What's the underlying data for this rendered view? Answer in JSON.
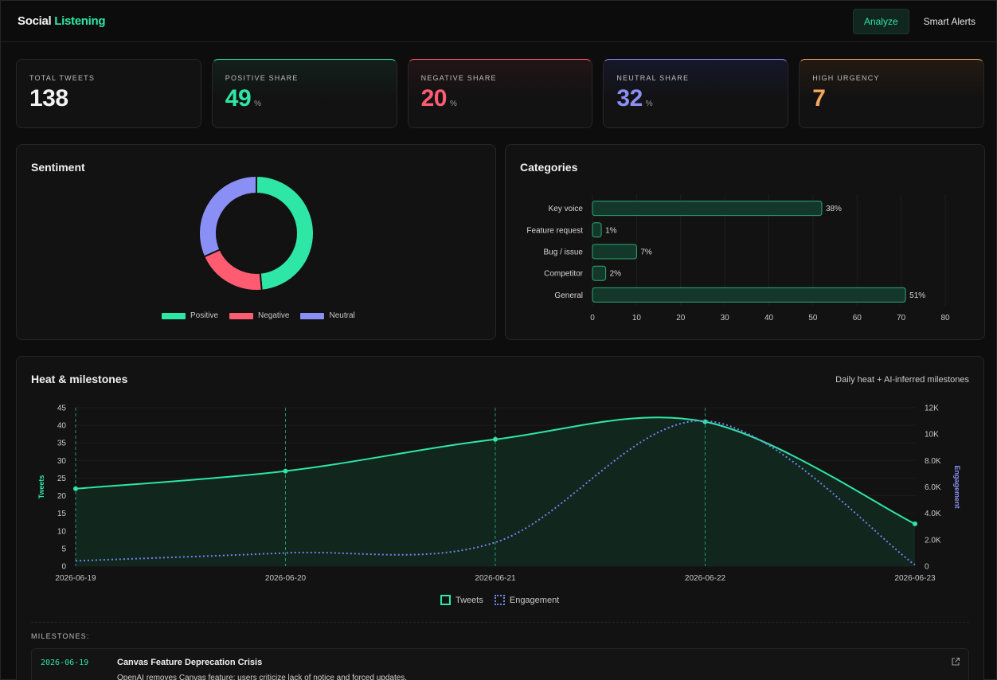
{
  "header": {
    "logo_part1": "Social",
    "logo_part2": "Listening",
    "nav": [
      {
        "label": "Analyze",
        "active": true
      },
      {
        "label": "Smart Alerts",
        "active": false
      }
    ]
  },
  "kpis": [
    {
      "label": "TOTAL TWEETS",
      "value": "138",
      "unit": "",
      "color": "#f2f2f2"
    },
    {
      "label": "POSITIVE SHARE",
      "value": "49",
      "unit": "%",
      "color": "#2ee6a6"
    },
    {
      "label": "NEGATIVE SHARE",
      "value": "20",
      "unit": "%",
      "color": "#ff5c72"
    },
    {
      "label": "NEUTRAL SHARE",
      "value": "32",
      "unit": "%",
      "color": "#8a8ff5"
    },
    {
      "label": "HIGH URGENCY",
      "value": "7",
      "unit": "",
      "color": "#f5a75a"
    }
  ],
  "sentiment": {
    "title": "Sentiment",
    "legend": [
      {
        "label": "Positive",
        "color": "#2ee6a6"
      },
      {
        "label": "Negative",
        "color": "#ff5c72"
      },
      {
        "label": "Neutral",
        "color": "#8a8ff5"
      }
    ]
  },
  "categories": {
    "title": "Categories"
  },
  "heat": {
    "title": "Heat & milestones",
    "subtitle": "Daily heat + AI-inferred milestones",
    "legend_tweets": "Tweets",
    "legend_engagement": "Engagement",
    "milestones_label": "MILESTONES:",
    "milestones": [
      {
        "date": "2026-06-19",
        "title": "Canvas Feature Deprecation Crisis",
        "desc": "OpenAI removes Canvas feature; users criticize lack of notice and forced updates.",
        "icon": "external-link-icon"
      }
    ]
  },
  "chart_data": [
    {
      "type": "pie",
      "title": "",
      "categories": [
        "Positive",
        "Negative",
        "Neutral"
      ],
      "values": [
        49,
        20,
        32
      ],
      "colors": [
        "#2ee6a6",
        "#ff5c72",
        "#8a8ff5"
      ],
      "donut": true,
      "legend": "bottom"
    },
    {
      "type": "bar",
      "orientation": "horizontal",
      "title": "",
      "categories": [
        "Key voice",
        "Feature request",
        "Bug / issue",
        "Competitor",
        "General"
      ],
      "values": [
        52,
        2,
        10,
        3,
        71
      ],
      "data_labels": [
        "38%",
        "1%",
        "7%",
        "2%",
        "51%"
      ],
      "xlim": [
        0,
        80
      ],
      "xticks": [
        0,
        10,
        20,
        30,
        40,
        50,
        60,
        70,
        80
      ],
      "grid": true
    },
    {
      "type": "line",
      "title": "",
      "x": [
        "2026-06-19",
        "2026-06-20",
        "2026-06-21",
        "2026-06-22",
        "2026-06-23"
      ],
      "ylabel": "Tweets",
      "y2label": "Engagement",
      "ylim": [
        0,
        45
      ],
      "yticks": [
        0,
        5,
        10,
        15,
        20,
        25,
        30,
        35,
        40,
        45
      ],
      "y2lim": [
        0,
        12000
      ],
      "y2ticks": [
        "0",
        "2.0K",
        "4.0K",
        "6.0K",
        "8.0K",
        "10K",
        "12K"
      ],
      "series": [
        {
          "name": "Tweets",
          "axis": "left",
          "values": [
            22,
            27,
            36,
            41,
            12
          ],
          "color": "#2ee6a6",
          "fill": true
        },
        {
          "name": "Engagement",
          "axis": "right",
          "values": [
            400,
            1000,
            1800,
            11000,
            100
          ],
          "color": "#6f86f0",
          "dashed": true
        }
      ],
      "milestone_markers": [
        "2026-06-19",
        "2026-06-20",
        "2026-06-21",
        "2026-06-22"
      ],
      "legend": "bottom"
    }
  ]
}
